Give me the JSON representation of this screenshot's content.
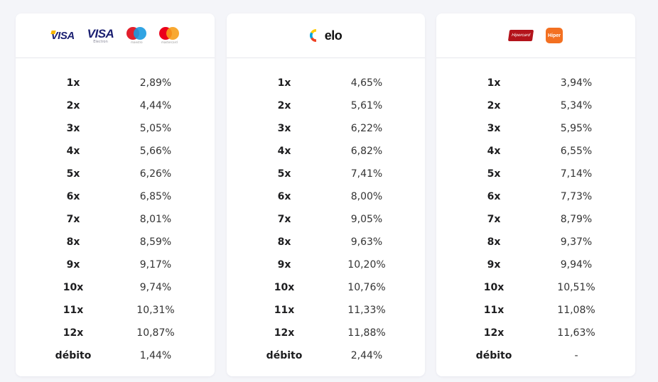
{
  "cards": [
    {
      "brands": [
        "VISA",
        "VISA",
        "maestro",
        "mastercard"
      ],
      "visa_sub": "Electron",
      "rows": [
        {
          "label": "1x",
          "rate": "2,89%"
        },
        {
          "label": "2x",
          "rate": "4,44%"
        },
        {
          "label": "3x",
          "rate": "5,05%"
        },
        {
          "label": "4x",
          "rate": "5,66%"
        },
        {
          "label": "5x",
          "rate": "6,26%"
        },
        {
          "label": "6x",
          "rate": "6,85%"
        },
        {
          "label": "7x",
          "rate": "8,01%"
        },
        {
          "label": "8x",
          "rate": "8,59%"
        },
        {
          "label": "9x",
          "rate": "9,17%"
        },
        {
          "label": "10x",
          "rate": "9,74%"
        },
        {
          "label": "11x",
          "rate": "10,31%"
        },
        {
          "label": "12x",
          "rate": "10,87%"
        },
        {
          "label": "débito",
          "rate": "1,44%"
        }
      ]
    },
    {
      "brands": [
        "elo"
      ],
      "rows": [
        {
          "label": "1x",
          "rate": "4,65%"
        },
        {
          "label": "2x",
          "rate": "5,61%"
        },
        {
          "label": "3x",
          "rate": "6,22%"
        },
        {
          "label": "4x",
          "rate": "6,82%"
        },
        {
          "label": "5x",
          "rate": "7,41%"
        },
        {
          "label": "6x",
          "rate": "8,00%"
        },
        {
          "label": "7x",
          "rate": "9,05%"
        },
        {
          "label": "8x",
          "rate": "9,63%"
        },
        {
          "label": "9x",
          "rate": "10,20%"
        },
        {
          "label": "10x",
          "rate": "10,76%"
        },
        {
          "label": "11x",
          "rate": "11,33%"
        },
        {
          "label": "12x",
          "rate": "11,88%"
        },
        {
          "label": "débito",
          "rate": "2,44%"
        }
      ]
    },
    {
      "brands": [
        "Hipercard",
        "Hiper"
      ],
      "rows": [
        {
          "label": "1x",
          "rate": "3,94%"
        },
        {
          "label": "2x",
          "rate": "5,34%"
        },
        {
          "label": "3x",
          "rate": "5,95%"
        },
        {
          "label": "4x",
          "rate": "6,55%"
        },
        {
          "label": "5x",
          "rate": "7,14%"
        },
        {
          "label": "6x",
          "rate": "7,73%"
        },
        {
          "label": "7x",
          "rate": "8,79%"
        },
        {
          "label": "8x",
          "rate": "9,37%"
        },
        {
          "label": "9x",
          "rate": "9,94%"
        },
        {
          "label": "10x",
          "rate": "10,51%"
        },
        {
          "label": "11x",
          "rate": "11,08%"
        },
        {
          "label": "12x",
          "rate": "11,63%"
        },
        {
          "label": "débito",
          "rate": "-"
        }
      ]
    }
  ],
  "colors": {
    "background": "#f4f5f9",
    "card": "#ffffff",
    "divider": "#e6e7ec",
    "visa_blue": "#1a1f71",
    "hipercard_red": "#b3131b",
    "hiper_orange": "#f37021"
  }
}
